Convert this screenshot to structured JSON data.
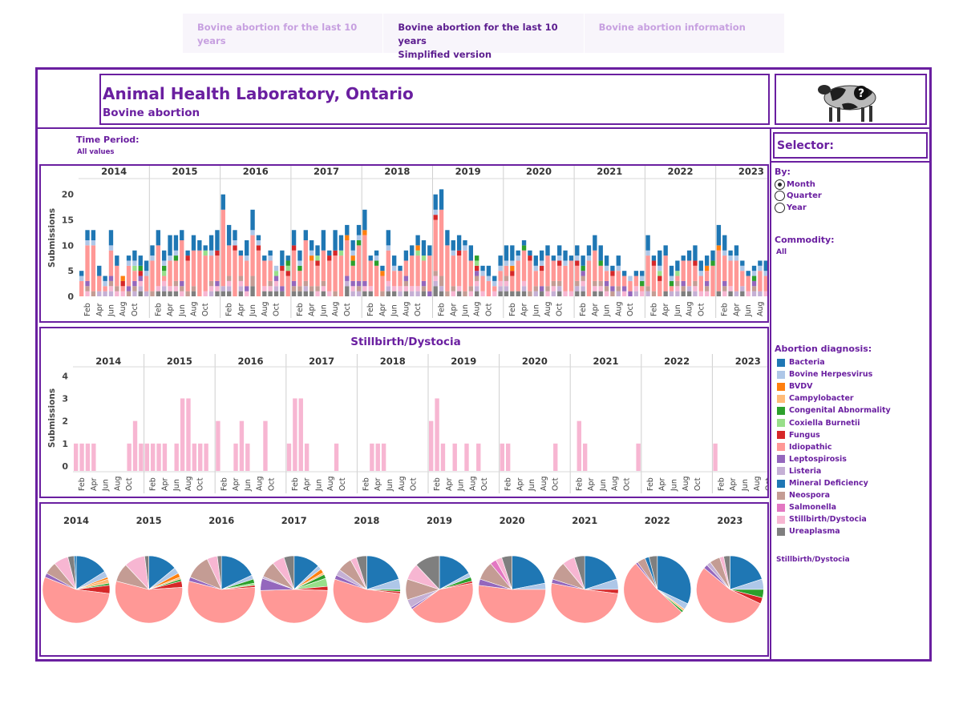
{
  "tabs": [
    {
      "line1": "Bovine abortion for the last 10 years",
      "line2": ""
    },
    {
      "line1": "Bovine abortion for the last 10 years",
      "line2": "Simplified version"
    },
    {
      "line1": "Bovine abortion information",
      "line2": ""
    }
  ],
  "header": {
    "title": "Animal Health Laboratory, Ontario",
    "subtitle": "Bovine abortion"
  },
  "logo_icon": "cow-question-icon",
  "filter": {
    "label": "Time Period:",
    "value": "All values"
  },
  "selector": {
    "title": "Selector:",
    "by_label": "By:",
    "options": [
      "Month",
      "Quarter",
      "Year"
    ],
    "selected": "Month",
    "commodity_label": "Commodity:",
    "commodity_value": "All",
    "diagnosis_label": "Abortion diagnosis:",
    "highlight_label": "Stillbirth/Dystocia"
  },
  "colors": {
    "Bacteria": "#1f77b4",
    "Bovine Herpesvirus": "#aec7e8",
    "BVDV": "#ff7f0e",
    "Campylobacter": "#ffbb78",
    "Congenital Abnormality": "#2ca02c",
    "Coxiella Burnetii": "#98df8a",
    "Fungus": "#d62728",
    "Idiopathic": "#ff9896",
    "Leptospirosis": "#9467bd",
    "Listeria": "#c5b0d5",
    "Mineral Deficiency": "#1f77b4",
    "Neospora": "#c49c94",
    "Salmonella": "#e377c2",
    "Stillbirth/Dystocia": "#f7b6d2",
    "Ureaplasma": "#7f7f7f"
  },
  "chart_data": [
    {
      "type": "bar",
      "stacked": true,
      "ylabel": "Submissions",
      "years": [
        "2014",
        "2015",
        "2016",
        "2017",
        "2018",
        "2019",
        "2020",
        "2021",
        "2022",
        "2023"
      ],
      "month_ticks": [
        "Feb",
        "Apr",
        "Jun",
        "Aug",
        "Oct"
      ],
      "yticks": [
        0,
        5,
        10,
        15,
        20
      ],
      "ylim": [
        0,
        22
      ],
      "monthly_totals": [
        [
          5,
          13,
          13,
          6,
          4,
          13,
          8,
          4,
          8,
          9,
          8,
          7
        ],
        [
          10,
          13,
          9,
          12,
          12,
          13,
          9,
          12,
          11,
          10,
          12,
          13
        ],
        [
          20,
          14,
          13,
          9,
          11,
          17,
          12,
          8,
          9,
          6,
          9,
          8
        ],
        [
          13,
          9,
          13,
          11,
          10,
          13,
          9,
          13,
          12,
          14,
          11,
          14
        ],
        [
          17,
          8,
          9,
          6,
          13,
          8,
          6,
          9,
          10,
          12,
          11,
          10
        ],
        [
          20,
          21,
          13,
          11,
          12,
          11,
          10,
          8,
          6,
          6,
          4,
          8
        ],
        [
          10,
          10,
          9,
          11,
          9,
          8,
          9,
          10,
          8,
          10,
          9,
          8
        ],
        [
          10,
          8,
          10,
          12,
          10,
          8,
          6,
          8,
          5,
          4,
          5,
          5
        ],
        [
          12,
          8,
          9,
          10,
          6,
          7,
          8,
          9,
          10,
          7,
          8,
          9
        ],
        [
          14,
          12,
          9,
          10,
          7,
          5,
          6,
          7,
          7,
          8,
          9,
          9
        ]
      ],
      "legend": [
        "Bacteria",
        "Bovine Herpesvirus",
        "BVDV",
        "Campylobacter",
        "Congenital Abnormality",
        "Coxiella Burnetii",
        "Fungus",
        "Idiopathic",
        "Leptospirosis",
        "Listeria",
        "Mineral Deficiency",
        "Neospora",
        "Salmonella",
        "Stillbirth/Dystocia",
        "Ureaplasma"
      ]
    },
    {
      "type": "bar",
      "title": "Stillbirth/Dystocia",
      "ylabel": "Submissions",
      "years": [
        "2014",
        "2015",
        "2016",
        "2017",
        "2018",
        "2019",
        "2020",
        "2021",
        "2022",
        "2023"
      ],
      "month_ticks": [
        "Feb",
        "Apr",
        "Jun",
        "Aug",
        "Oct"
      ],
      "yticks": [
        0,
        1,
        2,
        3,
        4
      ],
      "ylim": [
        0,
        4.4
      ],
      "monthly_values": [
        [
          1,
          1,
          1,
          1,
          0,
          0,
          0,
          0,
          0,
          1,
          2,
          1
        ],
        [
          1,
          1,
          1,
          1,
          0,
          1,
          3,
          3,
          1,
          1,
          1,
          0
        ],
        [
          2,
          0,
          0,
          1,
          2,
          1,
          0,
          0,
          2,
          0,
          0,
          0
        ],
        [
          1,
          3,
          3,
          1,
          0,
          0,
          0,
          0,
          1,
          0,
          0,
          0
        ],
        [
          0,
          0,
          1,
          1,
          1,
          0,
          0,
          0,
          0,
          0,
          0,
          0
        ],
        [
          2,
          3,
          1,
          0,
          1,
          0,
          1,
          0,
          1,
          0,
          0,
          0
        ],
        [
          1,
          1,
          0,
          0,
          0,
          0,
          0,
          0,
          0,
          1,
          0,
          0
        ],
        [
          0,
          2,
          1,
          0,
          0,
          0,
          0,
          0,
          0,
          0,
          0,
          1
        ],
        [
          0,
          0,
          0,
          0,
          0,
          0,
          0,
          0,
          0,
          0,
          0,
          0
        ],
        [
          1,
          0,
          0,
          0,
          0,
          0,
          0,
          0,
          0,
          0,
          0,
          0
        ]
      ],
      "color": "#f7b6d2"
    },
    {
      "type": "pie",
      "years": [
        "2014",
        "2015",
        "2016",
        "2017",
        "2018",
        "2019",
        "2020",
        "2021",
        "2022",
        "2023"
      ],
      "slices": [
        [
          [
            "Bacteria",
            16
          ],
          [
            "Bovine Herpesvirus",
            3
          ],
          [
            "BVDV",
            1
          ],
          [
            "Campylobacter",
            2
          ],
          [
            "Congenital Abnormality",
            1
          ],
          [
            "Fungus",
            4
          ],
          [
            "Idiopathic",
            54
          ],
          [
            "Leptospirosis",
            2
          ],
          [
            "Neospora",
            6
          ],
          [
            "Stillbirth/Dystocia",
            7
          ],
          [
            "Ureaplasma",
            3
          ],
          [
            "Mineral Deficiency",
            1
          ]
        ],
        [
          [
            "Bacteria",
            14
          ],
          [
            "Bovine Herpesvirus",
            3
          ],
          [
            "BVDV",
            2
          ],
          [
            "Campylobacter",
            1
          ],
          [
            "Congenital Abnormality",
            1
          ],
          [
            "Fungus",
            3
          ],
          [
            "Idiopathic",
            55
          ],
          [
            "Neospora",
            9
          ],
          [
            "Stillbirth/Dystocia",
            10
          ],
          [
            "Ureaplasma",
            2
          ]
        ],
        [
          [
            "Bacteria",
            18
          ],
          [
            "Bovine Herpesvirus",
            2
          ],
          [
            "Congenital Abnormality",
            2
          ],
          [
            "Coxiella Burnetii",
            1
          ],
          [
            "Fungus",
            1
          ],
          [
            "Idiopathic",
            55
          ],
          [
            "Leptospirosis",
            2
          ],
          [
            "Neospora",
            12
          ],
          [
            "Stillbirth/Dystocia",
            5
          ],
          [
            "Ureaplasma",
            2
          ]
        ],
        [
          [
            "Bacteria",
            13
          ],
          [
            "Bovine Herpesvirus",
            2
          ],
          [
            "BVDV",
            2
          ],
          [
            "Campylobacter",
            1
          ],
          [
            "Congenital Abnormality",
            2
          ],
          [
            "Coxiella Burnetii",
            4
          ],
          [
            "Fungus",
            2
          ],
          [
            "Idiopathic",
            50
          ],
          [
            "Leptospirosis",
            6
          ],
          [
            "Listeria",
            1
          ],
          [
            "Neospora",
            8
          ],
          [
            "Stillbirth/Dystocia",
            6
          ],
          [
            "Ureaplasma",
            5
          ]
        ],
        [
          [
            "Bacteria",
            20
          ],
          [
            "Bovine Herpesvirus",
            5
          ],
          [
            "Congenital Abnormality",
            1
          ],
          [
            "Fungus",
            1
          ],
          [
            "Idiopathic",
            53
          ],
          [
            "Leptospirosis",
            2
          ],
          [
            "Listeria",
            3
          ],
          [
            "Neospora",
            7
          ],
          [
            "Stillbirth/Dystocia",
            3
          ],
          [
            "Ureaplasma",
            5
          ]
        ],
        [
          [
            "Bacteria",
            17
          ],
          [
            "Bovine Herpesvirus",
            2
          ],
          [
            "Congenital Abnormality",
            2
          ],
          [
            "Fungus",
            1
          ],
          [
            "Idiopathic",
            43
          ],
          [
            "Leptospirosis",
            1
          ],
          [
            "Listeria",
            4
          ],
          [
            "Neospora",
            10
          ],
          [
            "Stillbirth/Dystocia",
            8
          ],
          [
            "Ureaplasma",
            12
          ]
        ],
        [
          [
            "Bacteria",
            22
          ],
          [
            "Bovine Herpesvirus",
            3
          ],
          [
            "Idiopathic",
            52
          ],
          [
            "Leptospirosis",
            3
          ],
          [
            "Neospora",
            9
          ],
          [
            "Salmonella",
            3
          ],
          [
            "Stillbirth/Dystocia",
            3
          ],
          [
            "Ureaplasma",
            5
          ]
        ],
        [
          [
            "Bacteria",
            20
          ],
          [
            "Bovine Herpesvirus",
            5
          ],
          [
            "Fungus",
            2
          ],
          [
            "Idiopathic",
            51
          ],
          [
            "Leptospirosis",
            2
          ],
          [
            "Neospora",
            9
          ],
          [
            "Stillbirth/Dystocia",
            6
          ],
          [
            "Ureaplasma",
            5
          ]
        ],
        [
          [
            "Bacteria",
            32
          ],
          [
            "Bovine Herpesvirus",
            3
          ],
          [
            "Campylobacter",
            1
          ],
          [
            "Congenital Abnormality",
            1
          ],
          [
            "Idiopathic",
            52
          ],
          [
            "Leptospirosis",
            1
          ],
          [
            "Neospora",
            4
          ],
          [
            "Mineral Deficiency",
            2
          ],
          [
            "Ureaplasma",
            4
          ]
        ],
        [
          [
            "Bacteria",
            20
          ],
          [
            "Bovine Herpesvirus",
            5
          ],
          [
            "Congenital Abnormality",
            4
          ],
          [
            "Fungus",
            3
          ],
          [
            "Idiopathic",
            54
          ],
          [
            "Leptospirosis",
            2
          ],
          [
            "Listeria",
            2
          ],
          [
            "Neospora",
            5
          ],
          [
            "Stillbirth/Dystocia",
            2
          ],
          [
            "Ureaplasma",
            3
          ]
        ]
      ]
    }
  ]
}
